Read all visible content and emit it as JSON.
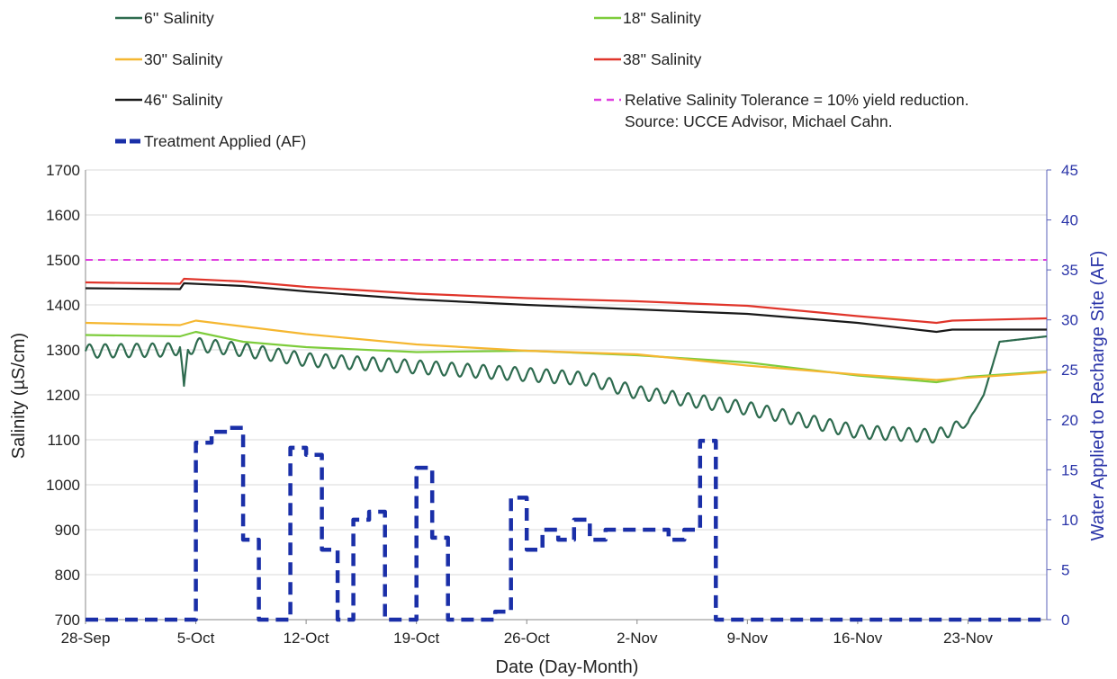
{
  "chart_data": {
    "type": "line",
    "xlabel": "Date (Day-Month)",
    "ylabel": "Salinity (µS/cm)",
    "y2label": "Water Applied to Recharge Site (AF)",
    "ylim": [
      700,
      1700
    ],
    "y2lim": [
      0,
      45
    ],
    "yticks": [
      700,
      800,
      900,
      1000,
      1100,
      1200,
      1300,
      1400,
      1500,
      1600,
      1700
    ],
    "y2ticks": [
      0,
      5,
      10,
      15,
      20,
      25,
      30,
      35,
      40,
      45
    ],
    "xlim": [
      "2023-09-28",
      "2023-11-28"
    ],
    "xticks": [
      "2023-09-28",
      "2023-10-05",
      "2023-10-12",
      "2023-10-19",
      "2023-10-26",
      "2023-11-02",
      "2023-11-09",
      "2023-11-16",
      "2023-11-23"
    ],
    "xticklabels": [
      "28-Sep",
      "5-Oct",
      "12-Oct",
      "19-Oct",
      "26-Oct",
      "2-Nov",
      "9-Nov",
      "16-Nov",
      "23-Nov"
    ],
    "grid": "horizontal",
    "legend_position": "top",
    "series": [
      {
        "name": "6'' Salinity",
        "color": "#2e6b4f",
        "axis": "left",
        "style": "solid",
        "oscillation_amplitude": 15,
        "oscillation_period_days": 1,
        "x": [
          "2023-09-28",
          "2023-10-03 12:00",
          "2023-10-04",
          "2023-10-04 06:00",
          "2023-10-04 12:00",
          "2023-10-05",
          "2023-10-08",
          "2023-10-12",
          "2023-10-19",
          "2023-10-26",
          "2023-10-30",
          "2023-11-02",
          "2023-11-09",
          "2023-11-16",
          "2023-11-21",
          "2023-11-22",
          "2023-11-23",
          "2023-11-24",
          "2023-11-25",
          "2023-11-28"
        ],
        "y": [
          1297,
          1300,
          1306,
          1205,
          1300,
          1312,
          1300,
          1278,
          1262,
          1245,
          1235,
          1205,
          1170,
          1118,
          1108,
          1125,
          1138,
          1200,
          1318,
          1330
        ]
      },
      {
        "name": "18\" Salinity",
        "color": "#7dcc3b",
        "axis": "left",
        "style": "solid",
        "x": [
          "2023-09-28",
          "2023-10-04",
          "2023-10-05",
          "2023-10-08",
          "2023-10-12",
          "2023-10-19",
          "2023-10-26",
          "2023-11-02",
          "2023-11-09",
          "2023-11-16",
          "2023-11-21",
          "2023-11-23",
          "2023-11-28"
        ],
        "y": [
          1333,
          1330,
          1340,
          1318,
          1306,
          1295,
          1298,
          1288,
          1272,
          1243,
          1228,
          1240,
          1252
        ]
      },
      {
        "name": "30'' Salinity",
        "color": "#f5b731",
        "axis": "left",
        "style": "solid",
        "x": [
          "2023-09-28",
          "2023-10-04",
          "2023-10-05",
          "2023-10-08",
          "2023-10-12",
          "2023-10-19",
          "2023-10-26",
          "2023-11-02",
          "2023-11-09",
          "2023-11-16",
          "2023-11-21",
          "2023-11-28"
        ],
        "y": [
          1360,
          1355,
          1365,
          1352,
          1335,
          1312,
          1298,
          1290,
          1265,
          1245,
          1233,
          1250
        ]
      },
      {
        "name": "38'' Salinity",
        "color": "#e0352b",
        "axis": "left",
        "style": "solid",
        "x": [
          "2023-09-28",
          "2023-10-04",
          "2023-10-04 06:00",
          "2023-10-08",
          "2023-10-12",
          "2023-10-19",
          "2023-10-26",
          "2023-11-02",
          "2023-11-09",
          "2023-11-16",
          "2023-11-21",
          "2023-11-22",
          "2023-11-28"
        ],
        "y": [
          1450,
          1447,
          1458,
          1452,
          1440,
          1425,
          1415,
          1408,
          1398,
          1375,
          1360,
          1365,
          1370
        ]
      },
      {
        "name": "46'' Salinity",
        "color": "#1a1a1a",
        "axis": "left",
        "style": "solid",
        "x": [
          "2023-09-28",
          "2023-10-04",
          "2023-10-04 06:00",
          "2023-10-08",
          "2023-10-12",
          "2023-10-19",
          "2023-10-26",
          "2023-11-02",
          "2023-11-09",
          "2023-11-16",
          "2023-11-21",
          "2023-11-22",
          "2023-11-28"
        ],
        "y": [
          1437,
          1435,
          1448,
          1442,
          1430,
          1412,
          1400,
          1390,
          1380,
          1360,
          1340,
          1345,
          1345
        ]
      },
      {
        "name": "Relative Salinity Tolerance = 10% yield reduction. Source: UCCE Advisor, Michael Cahn.",
        "color": "#e040e0",
        "axis": "left",
        "style": "dash",
        "x": [
          "2023-09-28",
          "2023-11-28"
        ],
        "y": [
          1500,
          1500
        ]
      },
      {
        "name": "Treatment Applied (AF)",
        "color": "#1a2fa8",
        "axis": "right",
        "style": "dash-step",
        "x": [
          "2023-09-28",
          "2023-10-05",
          "2023-10-06",
          "2023-10-07",
          "2023-10-08",
          "2023-10-09",
          "2023-10-10",
          "2023-10-11",
          "2023-10-12",
          "2023-10-13",
          "2023-10-14",
          "2023-10-15",
          "2023-10-16",
          "2023-10-17",
          "2023-10-18",
          "2023-10-19",
          "2023-10-20",
          "2023-10-21",
          "2023-10-22",
          "2023-10-23",
          "2023-10-24",
          "2023-10-25",
          "2023-10-26",
          "2023-10-27",
          "2023-10-28",
          "2023-10-29",
          "2023-10-30",
          "2023-10-31",
          "2023-11-01",
          "2023-11-02",
          "2023-11-03",
          "2023-11-04",
          "2023-11-05",
          "2023-11-06",
          "2023-11-07",
          "2023-11-28"
        ],
        "y": [
          0,
          17.7,
          18.8,
          19.2,
          8.0,
          0,
          0,
          17.2,
          16.5,
          7.0,
          0,
          10.0,
          10.8,
          0,
          0,
          15.2,
          8.2,
          0,
          0,
          0,
          0.8,
          12.2,
          7.0,
          9.0,
          8.0,
          10.0,
          8.0,
          9.0,
          9.0,
          9.0,
          9.0,
          8.0,
          9.0,
          17.9,
          0,
          0
        ]
      }
    ]
  }
}
